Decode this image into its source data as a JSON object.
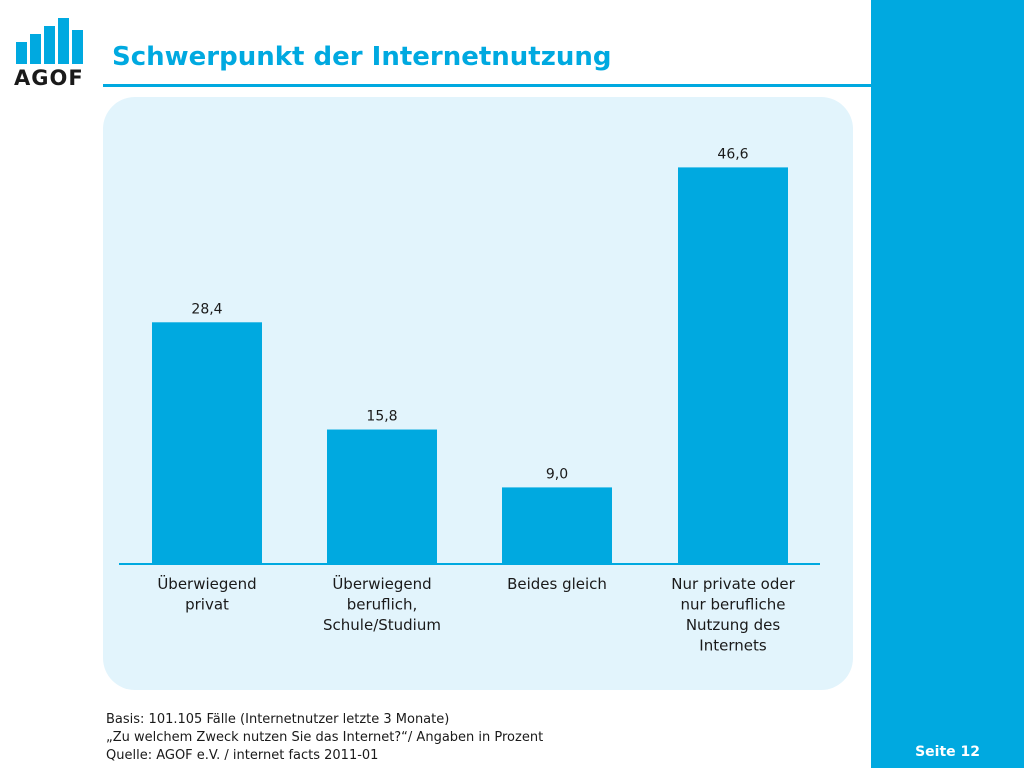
{
  "slide": {
    "title": "Schwerpunkt der Internetnutzung",
    "page_number": "Seite 12",
    "logo_text": "AGOF",
    "accent_color": "#00a9e0",
    "panel_color": "#e2f4fc"
  },
  "footnotes": [
    "Basis: 101.105 Fälle (Internetnutzer letzte 3 Monate)",
    "„Zu welchem Zweck nutzen Sie das Internet?“/ Angaben in Prozent",
    "Quelle: AGOF e.V. / internet facts 2011-01"
  ],
  "chart_data": {
    "type": "bar",
    "categories": [
      [
        "Überwiegend",
        "privat"
      ],
      [
        "Überwiegend",
        "beruflich,",
        "Schule/Studium"
      ],
      [
        "Beides gleich"
      ],
      [
        "Nur private oder",
        "nur berufliche",
        "Nutzung des",
        "Internets"
      ]
    ],
    "values": [
      28.4,
      15.8,
      9.0,
      46.6
    ],
    "value_labels": [
      "28,4",
      "15,8",
      "9,0",
      "46,6"
    ],
    "ylim": [
      0,
      50
    ],
    "grid": false,
    "bar_color": "#00a9e0"
  }
}
